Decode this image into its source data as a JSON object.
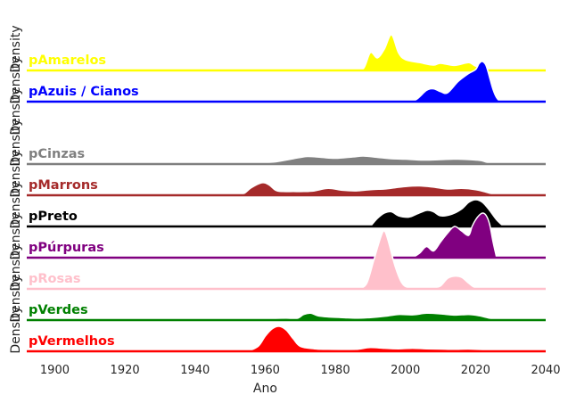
{
  "chart_data": {
    "type": "area",
    "subtype": "ridgeline-density",
    "xlabel": "Ano",
    "ylabel": "Density",
    "xlim": [
      1892,
      2040
    ],
    "xticks": [
      1900,
      1920,
      1940,
      1960,
      1980,
      2000,
      2020,
      2040
    ],
    "grid": false,
    "series": [
      {
        "name": "pAmarelos",
        "color": "#ffff00",
        "x": [
          1985,
          1988,
          1990,
          1992,
          1994,
          1996,
          1998,
          2000,
          2004,
          2008,
          2010,
          2014,
          2018,
          2020,
          2023,
          2026
        ],
        "y": [
          0,
          0.05,
          0.5,
          0.35,
          0.6,
          1.0,
          0.5,
          0.3,
          0.22,
          0.15,
          0.2,
          0.14,
          0.22,
          0.12,
          0.06,
          0
        ]
      },
      {
        "name": "pAzuis / Cianos",
        "color": "#0000ff",
        "x": [
          2000,
          2003,
          2006,
          2008,
          2010,
          2012,
          2015,
          2018,
          2020,
          2021,
          2022,
          2023,
          2024,
          2025,
          2026,
          2027
        ],
        "y": [
          0,
          0.05,
          0.28,
          0.32,
          0.25,
          0.22,
          0.5,
          0.7,
          0.8,
          0.95,
          1.0,
          0.9,
          0.6,
          0.3,
          0.1,
          0
        ]
      },
      {
        "name": "pCinzas",
        "color": "#808080",
        "x": [
          1954,
          1958,
          1963,
          1968,
          1972,
          1976,
          1980,
          1985,
          1988,
          1992,
          1996,
          2000,
          2005,
          2010,
          2015,
          2020,
          2022,
          2024,
          2026
        ],
        "y": [
          0,
          0.1,
          0.25,
          0.6,
          0.85,
          0.75,
          0.65,
          0.8,
          0.9,
          0.75,
          0.6,
          0.55,
          0.45,
          0.5,
          0.55,
          0.45,
          0.35,
          0.1,
          0
        ]
      },
      {
        "name": "pMarrons",
        "color": "#a52a2a",
        "x": [
          1952,
          1954,
          1956,
          1959,
          1961,
          1963,
          1965,
          1968,
          1971,
          1974,
          1978,
          1982,
          1986,
          1990,
          1994,
          1997,
          2000,
          2004,
          2008,
          2012,
          2016,
          2020,
          2023,
          2026
        ],
        "y": [
          0,
          0.15,
          0.6,
          1.0,
          0.85,
          0.4,
          0.3,
          0.3,
          0.3,
          0.35,
          0.55,
          0.4,
          0.35,
          0.45,
          0.5,
          0.6,
          0.7,
          0.75,
          0.65,
          0.5,
          0.55,
          0.45,
          0.25,
          0
        ]
      },
      {
        "name": "pPreto",
        "color": "#000000",
        "x": [
          1990,
          1992,
          1994,
          1996,
          1998,
          2001,
          2003,
          2006,
          2008,
          2010,
          2013,
          2016,
          2018,
          2020,
          2022,
          2024,
          2026,
          2028
        ],
        "y": [
          0,
          0.3,
          0.5,
          0.55,
          0.4,
          0.35,
          0.45,
          0.6,
          0.55,
          0.4,
          0.45,
          0.65,
          0.9,
          1.0,
          0.9,
          0.6,
          0.25,
          0
        ]
      },
      {
        "name": "pPúrpuras",
        "color": "#800080",
        "x": [
          2002,
          2004,
          2006,
          2008,
          2010,
          2012,
          2014,
          2016,
          2018,
          2019,
          2020,
          2021,
          2022,
          2023,
          2024,
          2025,
          2026
        ],
        "y": [
          0,
          0.1,
          0.25,
          0.15,
          0.35,
          0.55,
          0.7,
          0.6,
          0.5,
          0.7,
          0.85,
          0.95,
          1.0,
          0.95,
          0.75,
          0.35,
          0
        ]
      },
      {
        "name": "pRosas",
        "color": "#ffc0cb",
        "x": [
          1987,
          1989,
          1991,
          1993,
          1994,
          1995,
          1997,
          1999,
          2001,
          2004,
          2008,
          2010,
          2012,
          2014,
          2016,
          2018,
          2020,
          2024
        ],
        "y": [
          0,
          0.1,
          0.5,
          0.9,
          1.0,
          0.85,
          0.4,
          0.1,
          0.02,
          0,
          0.02,
          0.05,
          0.18,
          0.22,
          0.2,
          0.1,
          0.02,
          0
        ]
      },
      {
        "name": "pVerdes",
        "color": "#008000",
        "x": [
          1960,
          1963,
          1966,
          1969,
          1971,
          1973,
          1975,
          1978,
          1982,
          1986,
          1990,
          1994,
          1998,
          2002,
          2006,
          2010,
          2014,
          2018,
          2021,
          2024,
          2026
        ],
        "y": [
          0,
          0.12,
          0.15,
          0.12,
          0.45,
          0.55,
          0.35,
          0.25,
          0.2,
          0.15,
          0.2,
          0.3,
          0.45,
          0.42,
          0.55,
          0.5,
          0.4,
          0.45,
          0.35,
          0.15,
          0
        ]
      },
      {
        "name": "pVermelhos",
        "color": "#ff0000",
        "x": [
          1955,
          1958,
          1960,
          1962,
          1964,
          1966,
          1968,
          1970,
          1974,
          1978,
          1982,
          1986,
          1990,
          1994,
          1998,
          2002,
          2006,
          2010,
          2014,
          2018,
          2022,
          2026
        ],
        "y": [
          0,
          0.2,
          0.6,
          0.9,
          1.0,
          0.85,
          0.5,
          0.2,
          0.1,
          0.08,
          0.07,
          0.08,
          0.15,
          0.12,
          0.1,
          0.12,
          0.1,
          0.09,
          0.08,
          0.09,
          0.06,
          0
        ]
      }
    ]
  }
}
